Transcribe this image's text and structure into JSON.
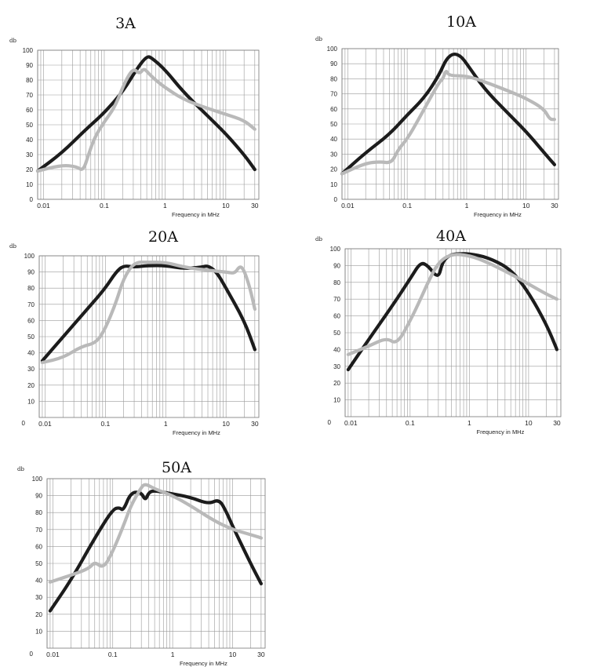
{
  "chart_data": [
    {
      "type": "line",
      "title": "3A",
      "ylabel": "db",
      "xlabel": "Frequency in MHz",
      "xscale": "log",
      "xlim": [
        0.008,
        35
      ],
      "ylim": [
        0,
        100
      ],
      "yticks": [
        0,
        10,
        20,
        30,
        40,
        50,
        60,
        70,
        80,
        90,
        100
      ],
      "xticks": [
        {
          "v": 0.01,
          "label": "0.01"
        },
        {
          "v": 0.1,
          "label": "0.1"
        },
        {
          "v": 1,
          "label": "1"
        },
        {
          "v": 10,
          "label": "10"
        },
        {
          "v": 30,
          "label": "30"
        }
      ],
      "grid": true,
      "series": [
        {
          "color": "#1c1c1c",
          "x": [
            0.008,
            0.02,
            0.05,
            0.1,
            0.2,
            0.35,
            0.5,
            0.6,
            1,
            2,
            5,
            10,
            20,
            30
          ],
          "y": [
            19,
            31,
            47,
            58,
            72,
            88,
            96,
            95,
            87,
            72,
            56,
            44,
            30,
            20
          ]
        },
        {
          "color": "#b9b9b9",
          "x": [
            0.008,
            0.02,
            0.035,
            0.045,
            0.055,
            0.07,
            0.1,
            0.15,
            0.22,
            0.3,
            0.38,
            0.45,
            0.55,
            0.7,
            1,
            2,
            5,
            10,
            20,
            30
          ],
          "y": [
            19,
            23,
            22,
            19,
            30,
            42,
            52,
            62,
            79,
            88,
            84,
            88,
            84,
            80,
            75,
            67,
            61,
            57,
            53,
            47
          ]
        }
      ]
    },
    {
      "type": "line",
      "title": "10A",
      "ylabel": "db",
      "xlabel": "Frequency in MHz",
      "xscale": "log",
      "xlim": [
        0.008,
        35
      ],
      "ylim": [
        0,
        100
      ],
      "yticks": [
        0,
        10,
        20,
        30,
        40,
        50,
        60,
        70,
        80,
        90,
        100
      ],
      "xticks": [
        {
          "v": 0.01,
          "label": "0.01"
        },
        {
          "v": 0.1,
          "label": "0.1"
        },
        {
          "v": 1,
          "label": "1"
        },
        {
          "v": 10,
          "label": "10"
        },
        {
          "v": 30,
          "label": "30"
        }
      ],
      "grid": true,
      "series": [
        {
          "color": "#1c1c1c",
          "x": [
            0.008,
            0.02,
            0.05,
            0.1,
            0.2,
            0.35,
            0.45,
            0.6,
            0.8,
            1,
            2,
            5,
            10,
            20,
            30
          ],
          "y": [
            17,
            31,
            43,
            56,
            68,
            83,
            93,
            97,
            95,
            90,
            73,
            57,
            45,
            31,
            23
          ]
        },
        {
          "color": "#b9b9b9",
          "x": [
            0.008,
            0.02,
            0.035,
            0.055,
            0.07,
            0.1,
            0.15,
            0.25,
            0.35,
            0.4,
            0.45,
            0.5,
            1,
            2,
            5,
            10,
            20,
            25,
            30
          ],
          "y": [
            17,
            24,
            25,
            24,
            33,
            40,
            52,
            68,
            78,
            80,
            86,
            82,
            82,
            78,
            72,
            67,
            60,
            53,
            53
          ]
        }
      ]
    },
    {
      "type": "line",
      "title": "20A",
      "ylabel": "db",
      "xlabel": "Frequency in MHz",
      "xscale": "log",
      "xlim": [
        0.008,
        35
      ],
      "ylim": [
        0,
        100
      ],
      "yticks": [
        10,
        20,
        30,
        40,
        50,
        60,
        70,
        80,
        90,
        100
      ],
      "origin_label": "0",
      "xticks": [
        {
          "v": 0.01,
          "label": "0.01"
        },
        {
          "v": 0.1,
          "label": "0.1"
        },
        {
          "v": 1,
          "label": "1"
        },
        {
          "v": 10,
          "label": "10"
        },
        {
          "v": 30,
          "label": "30"
        }
      ],
      "grid": true,
      "series": [
        {
          "color": "#1c1c1c",
          "x": [
            0.009,
            0.02,
            0.05,
            0.1,
            0.15,
            0.2,
            0.3,
            0.5,
            1,
            2,
            4,
            5,
            7,
            10,
            20,
            30
          ],
          "y": [
            35,
            50,
            67,
            80,
            90,
            94,
            93,
            94,
            94,
            92,
            93,
            94,
            90,
            80,
            60,
            42
          ]
        },
        {
          "color": "#b9b9b9",
          "x": [
            0.009,
            0.02,
            0.04,
            0.07,
            0.1,
            0.15,
            0.2,
            0.3,
            0.5,
            1,
            2,
            5,
            10,
            14,
            17,
            20,
            25,
            30
          ],
          "y": [
            34,
            37,
            44,
            46,
            55,
            71,
            86,
            96,
            96,
            96,
            93,
            91,
            90,
            89,
            94,
            91,
            80,
            67
          ]
        }
      ]
    },
    {
      "type": "line",
      "title": "40A",
      "ylabel": "db",
      "xlabel": "Frequency in MHz",
      "xscale": "log",
      "xlim": [
        0.008,
        35
      ],
      "ylim": [
        0,
        100
      ],
      "yticks": [
        10,
        20,
        30,
        40,
        50,
        60,
        70,
        80,
        90,
        100
      ],
      "origin_label": "0",
      "xticks": [
        {
          "v": 0.01,
          "label": "0.01"
        },
        {
          "v": 0.1,
          "label": "0.1"
        },
        {
          "v": 1,
          "label": "1"
        },
        {
          "v": 10,
          "label": "10"
        },
        {
          "v": 30,
          "label": "30"
        }
      ],
      "grid": true,
      "series": [
        {
          "color": "#1c1c1c",
          "x": [
            0.009,
            0.02,
            0.05,
            0.1,
            0.15,
            0.2,
            0.3,
            0.35,
            0.45,
            0.6,
            1,
            2,
            5,
            10,
            20,
            30
          ],
          "y": [
            28,
            46,
            66,
            82,
            92,
            90,
            82,
            92,
            96,
            97,
            97,
            95,
            88,
            74,
            55,
            40
          ]
        },
        {
          "color": "#b9b9b9",
          "x": [
            0.009,
            0.02,
            0.04,
            0.06,
            0.1,
            0.15,
            0.2,
            0.3,
            0.5,
            1,
            2,
            5,
            10,
            20,
            30
          ],
          "y": [
            37,
            42,
            47,
            43,
            57,
            70,
            80,
            92,
            97,
            96,
            92,
            85,
            79,
            73,
            70
          ]
        }
      ]
    },
    {
      "type": "line",
      "title": "50A",
      "ylabel": "db",
      "xlabel": "Frequency in MHz",
      "xscale": "log",
      "xlim": [
        0.008,
        35
      ],
      "ylim": [
        0,
        100
      ],
      "yticks": [
        10,
        20,
        30,
        40,
        50,
        60,
        70,
        80,
        90,
        100
      ],
      "origin_label": "0",
      "xticks": [
        {
          "v": 0.01,
          "label": "0.01"
        },
        {
          "v": 0.1,
          "label": "0.1"
        },
        {
          "v": 1,
          "label": "1"
        },
        {
          "v": 10,
          "label": "10"
        },
        {
          "v": 30,
          "label": "30"
        }
      ],
      "grid": true,
      "series": [
        {
          "color": "#1c1c1c",
          "x": [
            0.009,
            0.02,
            0.05,
            0.1,
            0.13,
            0.15,
            0.2,
            0.3,
            0.35,
            0.4,
            0.5,
            1,
            2,
            4,
            6,
            8,
            10,
            20,
            30
          ],
          "y": [
            22,
            40,
            65,
            82,
            83,
            81,
            92,
            92,
            87,
            92,
            93,
            91,
            89,
            85,
            88,
            80,
            72,
            50,
            38
          ]
        },
        {
          "color": "#b9b9b9",
          "x": [
            0.009,
            0.02,
            0.04,
            0.05,
            0.07,
            0.1,
            0.15,
            0.2,
            0.3,
            0.35,
            0.5,
            1,
            2,
            5,
            10,
            20,
            30
          ],
          "y": [
            39,
            43,
            47,
            51,
            47,
            57,
            72,
            84,
            95,
            97,
            94,
            90,
            84,
            75,
            70,
            67,
            65
          ]
        }
      ]
    }
  ]
}
